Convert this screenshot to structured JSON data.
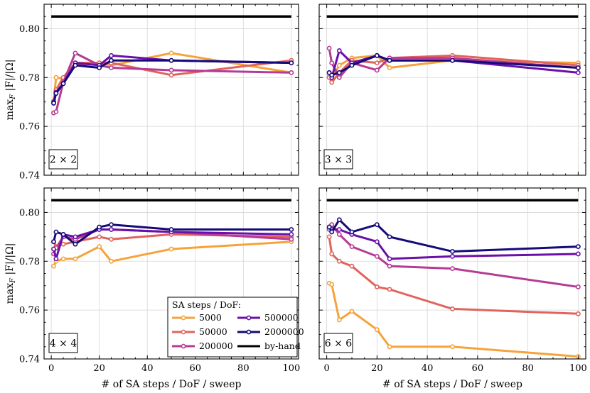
{
  "chart_data": {
    "type": "line",
    "layout": "2x2 grid of line charts with shared axes",
    "xlabel": "# of SA steps / DoF / sweep",
    "ylabel_main": "max",
    "ylabel_sub": "F",
    "ylabel_rest": " |F|/|Ω|",
    "xlim": [
      -3,
      103
    ],
    "ylim": [
      0.74,
      0.81
    ],
    "xticks": [
      0,
      20,
      40,
      60,
      80,
      100
    ],
    "yticks": [
      0.74,
      0.76,
      0.78,
      0.8
    ],
    "x": [
      1,
      2,
      5,
      10,
      20,
      25,
      50,
      100
    ],
    "legend": {
      "title": "SA steps / DoF:",
      "entries": [
        "5000",
        "50000",
        "200000",
        "500000",
        "2000000",
        "by-hand"
      ]
    },
    "series_colors": {
      "5000": "#f5a33a",
      "50000": "#e0635c",
      "200000": "#b63b94",
      "500000": "#6a0fa8",
      "2000000": "#140a7a",
      "by-hand": "#000000"
    },
    "panels": [
      {
        "label": "2 × 2",
        "byhand": 0.805,
        "series": [
          {
            "name": "5000",
            "values": [
              0.7705,
              0.78,
              0.7795,
              0.785,
              0.786,
              0.785,
              0.79,
              0.782
            ]
          },
          {
            "name": "50000",
            "values": [
              0.7695,
              0.775,
              0.78,
              0.786,
              0.786,
              0.786,
              0.781,
              0.787
            ]
          },
          {
            "name": "200000",
            "values": [
              0.7655,
              0.766,
              0.778,
              0.79,
              0.785,
              0.784,
              0.783,
              0.782
            ]
          },
          {
            "name": "500000",
            "values": [
              0.77,
              0.774,
              0.7775,
              0.786,
              0.785,
              0.789,
              0.787,
              0.786
            ]
          },
          {
            "name": "2000000",
            "values": [
              0.7695,
              0.7735,
              0.7775,
              0.785,
              0.784,
              0.787,
              0.787,
              0.786
            ]
          }
        ]
      },
      {
        "label": "3 × 3",
        "byhand": 0.805,
        "series": [
          {
            "name": "5000",
            "values": [
              0.781,
              0.7795,
              0.785,
              0.788,
              0.789,
              0.784,
              0.787,
              0.786
            ]
          },
          {
            "name": "50000",
            "values": [
              0.78,
              0.778,
              0.782,
              0.787,
              0.786,
              0.788,
              0.789,
              0.785
            ]
          },
          {
            "name": "200000",
            "values": [
              0.792,
              0.786,
              0.78,
              0.786,
              0.783,
              0.788,
              0.788,
              0.784
            ]
          },
          {
            "name": "500000",
            "values": [
              0.782,
              0.78,
              0.791,
              0.786,
              0.789,
              0.787,
              0.787,
              0.782
            ]
          },
          {
            "name": "2000000",
            "values": [
              0.782,
              0.781,
              0.782,
              0.785,
              0.789,
              0.787,
              0.787,
              0.784
            ]
          }
        ]
      },
      {
        "label": "4 × 4",
        "byhand": 0.805,
        "series": [
          {
            "name": "5000",
            "values": [
              0.778,
              0.78,
              0.781,
              0.781,
              0.786,
              0.78,
              0.785,
              0.788
            ]
          },
          {
            "name": "50000",
            "values": [
              0.788,
              0.786,
              0.787,
              0.788,
              0.79,
              0.789,
              0.791,
              0.79
            ]
          },
          {
            "name": "200000",
            "values": [
              0.783,
              0.7855,
              0.79,
              0.789,
              0.793,
              0.793,
              0.792,
              0.789
            ]
          },
          {
            "name": "500000",
            "values": [
              0.785,
              0.781,
              0.791,
              0.79,
              0.793,
              0.793,
              0.792,
              0.791
            ]
          },
          {
            "name": "2000000",
            "values": [
              0.788,
              0.792,
              0.791,
              0.787,
              0.794,
              0.795,
              0.793,
              0.793
            ]
          }
        ]
      },
      {
        "label": "6 × 6",
        "byhand": 0.805,
        "series": [
          {
            "name": "5000",
            "values": [
              0.771,
              0.7705,
              0.756,
              0.7595,
              0.752,
              0.745,
              0.745,
              0.741
            ]
          },
          {
            "name": "50000",
            "values": [
              0.79,
              0.783,
              0.78,
              0.778,
              0.7695,
              0.7685,
              0.7605,
              0.7585
            ]
          },
          {
            "name": "200000",
            "values": [
              0.793,
              0.795,
              0.791,
              0.786,
              0.782,
              0.778,
              0.777,
              0.7695
            ]
          },
          {
            "name": "500000",
            "values": [
              0.794,
              0.793,
              0.793,
              0.791,
              0.788,
              0.781,
              0.782,
              0.783
            ]
          },
          {
            "name": "2000000",
            "values": [
              0.794,
              0.792,
              0.797,
              0.792,
              0.795,
              0.79,
              0.784,
              0.786
            ]
          }
        ]
      }
    ]
  }
}
